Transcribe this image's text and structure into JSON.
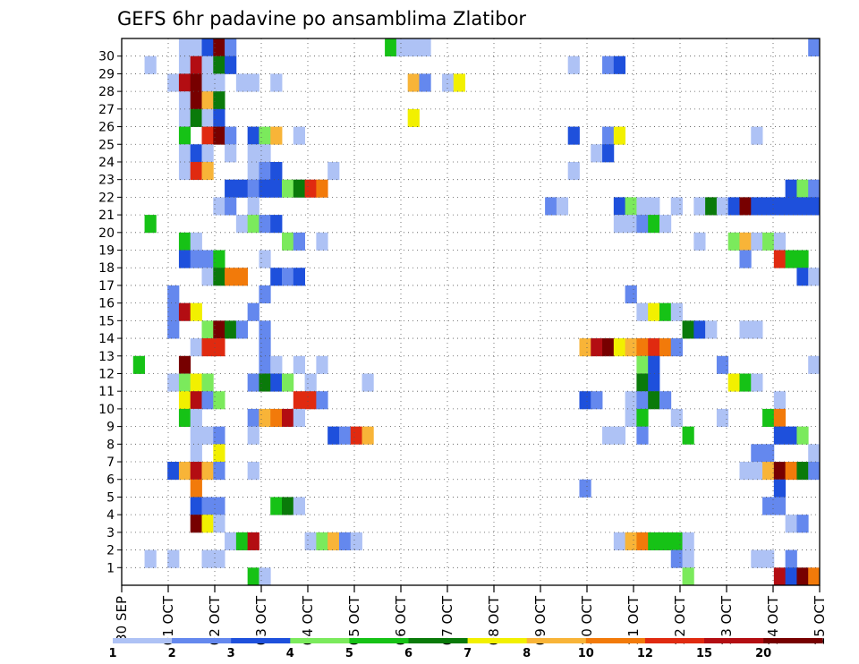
{
  "chart_data": {
    "type": "heatmap",
    "title": "GEFS 6hr padavine po ansamblima Zlatibor",
    "xlabel": "",
    "ylabel": "",
    "x_tick_labels": [
      "30 SEP",
      "01 OCT",
      "02 OCT",
      "03 OCT",
      "04 OCT",
      "05 OCT",
      "06 OCT",
      "07 OCT",
      "08 OCT",
      "09 OCT",
      "10 OCT",
      "11 OCT",
      "12 OCT",
      "13 OCT",
      "14 OCT",
      "15 OCT"
    ],
    "y_tick_labels": [
      "1",
      "2",
      "3",
      "4",
      "5",
      "6",
      "7",
      "8",
      "9",
      "10",
      "11",
      "12",
      "13",
      "14",
      "15",
      "16",
      "17",
      "18",
      "19",
      "20",
      "21",
      "22",
      "23",
      "24",
      "25",
      "26",
      "27",
      "28",
      "29",
      "30"
    ],
    "members": 31,
    "time_steps": 61,
    "time_step_hours": 6,
    "grid": true,
    "legend_position": "bottom",
    "color_scale": {
      "labels": [
        "1",
        "2",
        "3",
        "4",
        "5",
        "6",
        "7",
        "8",
        "10",
        "12",
        "15",
        "20"
      ],
      "colors": [
        "#aec2f5",
        "#6488ee",
        "#1e50dc",
        "#7bea5c",
        "#16c216",
        "#0a7a0a",
        "#f2f000",
        "#f8b438",
        "#f27a0a",
        "#e02a10",
        "#b30d12",
        "#770000"
      ]
    },
    "cells": [
      [
        5,
        30,
        1
      ],
      [
        6,
        30,
        1
      ],
      [
        7,
        30,
        3
      ],
      [
        8,
        30,
        12
      ],
      [
        9,
        30,
        2
      ],
      [
        23,
        30,
        5
      ],
      [
        24,
        30,
        1
      ],
      [
        25,
        30,
        1
      ],
      [
        26,
        30,
        1
      ],
      [
        60,
        30,
        2
      ],
      [
        2,
        29,
        1
      ],
      [
        5,
        29,
        1
      ],
      [
        6,
        29,
        11
      ],
      [
        7,
        29,
        1
      ],
      [
        8,
        29,
        6
      ],
      [
        9,
        29,
        3
      ],
      [
        39,
        29,
        1
      ],
      [
        42,
        29,
        2
      ],
      [
        43,
        29,
        3
      ],
      [
        4,
        28,
        1
      ],
      [
        5,
        28,
        11
      ],
      [
        6,
        28,
        12
      ],
      [
        7,
        28,
        1
      ],
      [
        8,
        28,
        1
      ],
      [
        10,
        28,
        1
      ],
      [
        11,
        28,
        1
      ],
      [
        13,
        28,
        1
      ],
      [
        25,
        28,
        8
      ],
      [
        26,
        28,
        2
      ],
      [
        28,
        28,
        1
      ],
      [
        29,
        28,
        7
      ],
      [
        5,
        27,
        1
      ],
      [
        6,
        27,
        12
      ],
      [
        7,
        27,
        8
      ],
      [
        8,
        27,
        6
      ],
      [
        5,
        26,
        1
      ],
      [
        6,
        26,
        6
      ],
      [
        7,
        26,
        1
      ],
      [
        8,
        26,
        3
      ],
      [
        25,
        26,
        7
      ],
      [
        5,
        25,
        5
      ],
      [
        7,
        25,
        10
      ],
      [
        8,
        25,
        12
      ],
      [
        9,
        25,
        2
      ],
      [
        11,
        25,
        3
      ],
      [
        12,
        25,
        4
      ],
      [
        13,
        25,
        8
      ],
      [
        15,
        25,
        1
      ],
      [
        39,
        25,
        3
      ],
      [
        42,
        25,
        2
      ],
      [
        43,
        25,
        7
      ],
      [
        55,
        25,
        1
      ],
      [
        5,
        24,
        1
      ],
      [
        6,
        24,
        3
      ],
      [
        7,
        24,
        1
      ],
      [
        9,
        24,
        1
      ],
      [
        11,
        24,
        1
      ],
      [
        12,
        24,
        1
      ],
      [
        41,
        24,
        1
      ],
      [
        42,
        24,
        3
      ],
      [
        5,
        23,
        1
      ],
      [
        6,
        23,
        10
      ],
      [
        7,
        23,
        8
      ],
      [
        11,
        23,
        1
      ],
      [
        12,
        23,
        2
      ],
      [
        13,
        23,
        3
      ],
      [
        18,
        23,
        1
      ],
      [
        39,
        23,
        1
      ],
      [
        9,
        22,
        3
      ],
      [
        10,
        22,
        3
      ],
      [
        11,
        22,
        2
      ],
      [
        12,
        22,
        3
      ],
      [
        13,
        22,
        3
      ],
      [
        14,
        22,
        4
      ],
      [
        15,
        22,
        6
      ],
      [
        16,
        22,
        10
      ],
      [
        17,
        22,
        9
      ],
      [
        58,
        22,
        3
      ],
      [
        59,
        22,
        4
      ],
      [
        60,
        22,
        2
      ],
      [
        8,
        21,
        1
      ],
      [
        9,
        21,
        2
      ],
      [
        11,
        21,
        1
      ],
      [
        37,
        21,
        2
      ],
      [
        38,
        21,
        1
      ],
      [
        43,
        21,
        3
      ],
      [
        44,
        21,
        4
      ],
      [
        45,
        21,
        1
      ],
      [
        46,
        21,
        1
      ],
      [
        48,
        21,
        1
      ],
      [
        50,
        21,
        1
      ],
      [
        51,
        21,
        6
      ],
      [
        52,
        21,
        1
      ],
      [
        53,
        21,
        3
      ],
      [
        54,
        21,
        12
      ],
      [
        55,
        21,
        3
      ],
      [
        56,
        21,
        3
      ],
      [
        57,
        21,
        3
      ],
      [
        58,
        21,
        3
      ],
      [
        59,
        21,
        3
      ],
      [
        60,
        21,
        3
      ],
      [
        2,
        20,
        5
      ],
      [
        10,
        20,
        1
      ],
      [
        11,
        20,
        4
      ],
      [
        12,
        20,
        2
      ],
      [
        13,
        20,
        3
      ],
      [
        43,
        20,
        1
      ],
      [
        44,
        20,
        1
      ],
      [
        45,
        20,
        2
      ],
      [
        46,
        20,
        5
      ],
      [
        47,
        20,
        1
      ],
      [
        5,
        19,
        5
      ],
      [
        6,
        19,
        1
      ],
      [
        14,
        19,
        4
      ],
      [
        15,
        19,
        2
      ],
      [
        17,
        19,
        1
      ],
      [
        50,
        19,
        1
      ],
      [
        53,
        19,
        4
      ],
      [
        54,
        19,
        8
      ],
      [
        55,
        19,
        1
      ],
      [
        56,
        19,
        4
      ],
      [
        57,
        19,
        1
      ],
      [
        5,
        18,
        3
      ],
      [
        6,
        18,
        2
      ],
      [
        7,
        18,
        2
      ],
      [
        8,
        18,
        5
      ],
      [
        12,
        18,
        1
      ],
      [
        54,
        18,
        2
      ],
      [
        57,
        18,
        10
      ],
      [
        58,
        18,
        5
      ],
      [
        59,
        18,
        5
      ],
      [
        7,
        17,
        1
      ],
      [
        8,
        17,
        6
      ],
      [
        9,
        17,
        9
      ],
      [
        10,
        17,
        9
      ],
      [
        13,
        17,
        3
      ],
      [
        14,
        17,
        2
      ],
      [
        15,
        17,
        3
      ],
      [
        59,
        17,
        3
      ],
      [
        60,
        17,
        1
      ],
      [
        4,
        16,
        2
      ],
      [
        12,
        16,
        2
      ],
      [
        44,
        16,
        2
      ],
      [
        4,
        15,
        2
      ],
      [
        5,
        15,
        11
      ],
      [
        6,
        15,
        7
      ],
      [
        11,
        15,
        2
      ],
      [
        45,
        15,
        1
      ],
      [
        46,
        15,
        7
      ],
      [
        47,
        15,
        5
      ],
      [
        48,
        15,
        1
      ],
      [
        4,
        14,
        2
      ],
      [
        7,
        14,
        4
      ],
      [
        8,
        14,
        12
      ],
      [
        9,
        14,
        6
      ],
      [
        10,
        14,
        2
      ],
      [
        12,
        14,
        2
      ],
      [
        49,
        14,
        6
      ],
      [
        50,
        14,
        3
      ],
      [
        51,
        14,
        1
      ],
      [
        54,
        14,
        1
      ],
      [
        55,
        14,
        1
      ],
      [
        6,
        13,
        1
      ],
      [
        7,
        13,
        10
      ],
      [
        8,
        13,
        10
      ],
      [
        12,
        13,
        2
      ],
      [
        40,
        13,
        8
      ],
      [
        41,
        13,
        11
      ],
      [
        42,
        13,
        12
      ],
      [
        43,
        13,
        7
      ],
      [
        44,
        13,
        8
      ],
      [
        45,
        13,
        9
      ],
      [
        46,
        13,
        10
      ],
      [
        47,
        13,
        9
      ],
      [
        48,
        13,
        2
      ],
      [
        1,
        12,
        5
      ],
      [
        5,
        12,
        12
      ],
      [
        12,
        12,
        2
      ],
      [
        13,
        12,
        1
      ],
      [
        15,
        12,
        1
      ],
      [
        17,
        12,
        1
      ],
      [
        45,
        12,
        4
      ],
      [
        46,
        12,
        3
      ],
      [
        52,
        12,
        2
      ],
      [
        60,
        12,
        1
      ],
      [
        4,
        11,
        1
      ],
      [
        5,
        11,
        4
      ],
      [
        6,
        11,
        7
      ],
      [
        7,
        11,
        4
      ],
      [
        11,
        11,
        2
      ],
      [
        12,
        11,
        6
      ],
      [
        13,
        11,
        3
      ],
      [
        14,
        11,
        4
      ],
      [
        16,
        11,
        1
      ],
      [
        21,
        11,
        1
      ],
      [
        45,
        11,
        6
      ],
      [
        46,
        11,
        3
      ],
      [
        53,
        11,
        7
      ],
      [
        54,
        11,
        5
      ],
      [
        55,
        11,
        1
      ],
      [
        5,
        10,
        7
      ],
      [
        6,
        10,
        11
      ],
      [
        7,
        10,
        2
      ],
      [
        8,
        10,
        4
      ],
      [
        15,
        10,
        10
      ],
      [
        16,
        10,
        10
      ],
      [
        17,
        10,
        2
      ],
      [
        40,
        10,
        3
      ],
      [
        41,
        10,
        2
      ],
      [
        44,
        10,
        1
      ],
      [
        45,
        10,
        2
      ],
      [
        46,
        10,
        6
      ],
      [
        47,
        10,
        2
      ],
      [
        57,
        10,
        1
      ],
      [
        5,
        9,
        5
      ],
      [
        6,
        9,
        1
      ],
      [
        11,
        9,
        2
      ],
      [
        12,
        9,
        8
      ],
      [
        13,
        9,
        9
      ],
      [
        14,
        9,
        11
      ],
      [
        15,
        9,
        1
      ],
      [
        44,
        9,
        1
      ],
      [
        45,
        9,
        5
      ],
      [
        48,
        9,
        1
      ],
      [
        52,
        9,
        1
      ],
      [
        56,
        9,
        5
      ],
      [
        57,
        9,
        9
      ],
      [
        6,
        8,
        1
      ],
      [
        7,
        8,
        1
      ],
      [
        8,
        8,
        2
      ],
      [
        11,
        8,
        1
      ],
      [
        18,
        8,
        3
      ],
      [
        19,
        8,
        2
      ],
      [
        20,
        8,
        10
      ],
      [
        21,
        8,
        8
      ],
      [
        42,
        8,
        1
      ],
      [
        43,
        8,
        1
      ],
      [
        45,
        8,
        2
      ],
      [
        49,
        8,
        5
      ],
      [
        57,
        8,
        3
      ],
      [
        58,
        8,
        3
      ],
      [
        59,
        8,
        4
      ],
      [
        6,
        7,
        1
      ],
      [
        8,
        7,
        7
      ],
      [
        55,
        7,
        2
      ],
      [
        56,
        7,
        2
      ],
      [
        60,
        7,
        1
      ],
      [
        4,
        6,
        3
      ],
      [
        5,
        6,
        8
      ],
      [
        6,
        6,
        11
      ],
      [
        7,
        6,
        8
      ],
      [
        8,
        6,
        2
      ],
      [
        11,
        6,
        1
      ],
      [
        54,
        6,
        1
      ],
      [
        55,
        6,
        1
      ],
      [
        56,
        6,
        8
      ],
      [
        57,
        6,
        12
      ],
      [
        58,
        6,
        9
      ],
      [
        59,
        6,
        6
      ],
      [
        60,
        6,
        2
      ],
      [
        6,
        5,
        9
      ],
      [
        40,
        5,
        2
      ],
      [
        57,
        5,
        3
      ],
      [
        6,
        4,
        3
      ],
      [
        7,
        4,
        2
      ],
      [
        8,
        4,
        2
      ],
      [
        13,
        4,
        5
      ],
      [
        14,
        4,
        6
      ],
      [
        15,
        4,
        1
      ],
      [
        56,
        4,
        2
      ],
      [
        57,
        4,
        2
      ],
      [
        6,
        3,
        12
      ],
      [
        7,
        3,
        7
      ],
      [
        8,
        3,
        1
      ],
      [
        58,
        3,
        1
      ],
      [
        59,
        3,
        2
      ],
      [
        9,
        2,
        1
      ],
      [
        10,
        2,
        5
      ],
      [
        11,
        2,
        11
      ],
      [
        16,
        2,
        1
      ],
      [
        17,
        2,
        4
      ],
      [
        18,
        2,
        8
      ],
      [
        19,
        2,
        2
      ],
      [
        20,
        2,
        1
      ],
      [
        43,
        2,
        1
      ],
      [
        44,
        2,
        8
      ],
      [
        45,
        2,
        9
      ],
      [
        46,
        2,
        5
      ],
      [
        47,
        2,
        5
      ],
      [
        48,
        2,
        5
      ],
      [
        49,
        2,
        1
      ],
      [
        2,
        1,
        1
      ],
      [
        4,
        1,
        1
      ],
      [
        7,
        1,
        1
      ],
      [
        8,
        1,
        1
      ],
      [
        48,
        1,
        2
      ],
      [
        49,
        1,
        1
      ],
      [
        55,
        1,
        1
      ],
      [
        56,
        1,
        1
      ],
      [
        58,
        1,
        2
      ],
      [
        11,
        0,
        5
      ],
      [
        12,
        0,
        1
      ],
      [
        49,
        0,
        4
      ],
      [
        57,
        0,
        11
      ],
      [
        58,
        0,
        3
      ],
      [
        59,
        0,
        12
      ],
      [
        60,
        0,
        9
      ]
    ]
  }
}
